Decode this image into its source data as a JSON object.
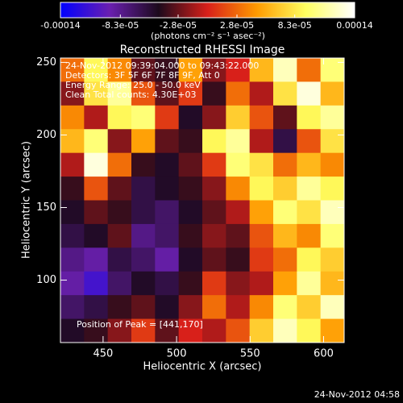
{
  "chart_data": {
    "type": "heatmap",
    "title": "Reconstructed RHESSI Image",
    "x_label": "Heliocentric X (arcsec)",
    "y_label": "Heliocentric Y (arcsec)",
    "colorbar_label": "(photons cm⁻² s⁻¹ asec⁻²)",
    "annotations": [
      "24-Nov-2012 09:39:04.000 to 09:43:22.000",
      "Detectors: 3F 5F 6F 7F 8F 9F, Att 0",
      "Energy Range: 25.0 - 50.0 keV",
      "Clean    Total counts: 4.30E+03"
    ],
    "peak_label": "Position of Peak = [441,170]",
    "footer": "24-Nov-2012 04:58",
    "xlim": [
      421,
      614
    ],
    "ylim": [
      57,
      253
    ],
    "xticks": [
      450,
      500,
      550,
      600
    ],
    "yticks": [
      100,
      150,
      200,
      250
    ],
    "clim": [
      -0.00014,
      0.00014
    ],
    "cticks": [
      -0.00014,
      {
        "value": -8.3e-05,
        "label": "-8.3e-05"
      },
      {
        "value": -2.8e-05,
        "label": "-2.8e-05"
      },
      {
        "value": 2.8e-05,
        "label": "2.8e-05"
      },
      {
        "value": 8.3e-05,
        "label": "8.3e-05"
      },
      0.00014
    ],
    "colorscale": [
      "#0000ff",
      "#6a1fb0",
      "#1c0a1c",
      "#d8201a",
      "#ff9a00",
      "#ffff60",
      "#ffffff"
    ],
    "z": [
      [
        3e-05,
        9e-05,
        4e-05,
        -3e-05,
        -4e-05,
        5e-05,
        -2e-05,
        0,
        6e-05,
        0.00012,
        3e-05,
        0.0001
      ],
      [
        -2e-05,
        8e-05,
        0.00011,
        2e-05,
        -3e-05,
        1e-05,
        -4e-05,
        3e-05,
        -1e-05,
        8e-05,
        0.00013,
        6e-05
      ],
      [
        4e-05,
        -1e-05,
        9e-05,
        0.0001,
        1e-05,
        -5e-05,
        -2e-05,
        7e-05,
        2e-05,
        -3e-05,
        9e-05,
        0.00011
      ],
      [
        6e-05,
        0.0001,
        -2e-05,
        5e-05,
        -3e-05,
        -4e-05,
        9e-05,
        0.00011,
        -1e-05,
        -6e-05,
        2e-05,
        8e-05
      ],
      [
        -1e-05,
        0.00013,
        3e-05,
        -4e-05,
        -5e-05,
        -3e-05,
        1e-05,
        0.0001,
        8e-05,
        3e-05,
        6e-05,
        4e-05
      ],
      [
        -4e-05,
        2e-05,
        -3e-05,
        -6e-05,
        -5e-05,
        -4e-05,
        -2e-05,
        4e-05,
        9e-05,
        7e-05,
        0.00011,
        9e-05
      ],
      [
        -5e-05,
        -3e-05,
        -4e-05,
        -6e-05,
        -7e-05,
        -5e-05,
        -3e-05,
        -1e-05,
        5e-05,
        0.0001,
        8e-05,
        0.00012
      ],
      [
        -6e-05,
        -5e-05,
        -3e-05,
        -8e-05,
        -7e-05,
        -4e-05,
        -2e-05,
        -3e-05,
        2e-05,
        6e-05,
        4e-05,
        0.0001
      ],
      [
        -8e-05,
        -9e-05,
        -6e-05,
        -7e-05,
        -9e-05,
        -5e-05,
        -3e-05,
        -4e-05,
        1e-05,
        3e-05,
        9e-05,
        7e-05
      ],
      [
        -9e-05,
        -0.00011,
        -7e-05,
        -5e-05,
        -6e-05,
        -4e-05,
        1e-05,
        -2e-05,
        -1e-05,
        5e-05,
        0.00011,
        6e-05
      ],
      [
        -7e-05,
        -6e-05,
        -4e-05,
        -3e-05,
        -5e-05,
        -2e-05,
        3e-05,
        -1e-05,
        4e-05,
        0.0001,
        7e-05,
        0.00012
      ],
      [
        -5e-05,
        -4e-05,
        -2e-05,
        1e-05,
        -3e-05,
        0,
        -1e-05,
        2e-05,
        7e-05,
        0.00012,
        9e-05,
        5e-05
      ]
    ]
  }
}
